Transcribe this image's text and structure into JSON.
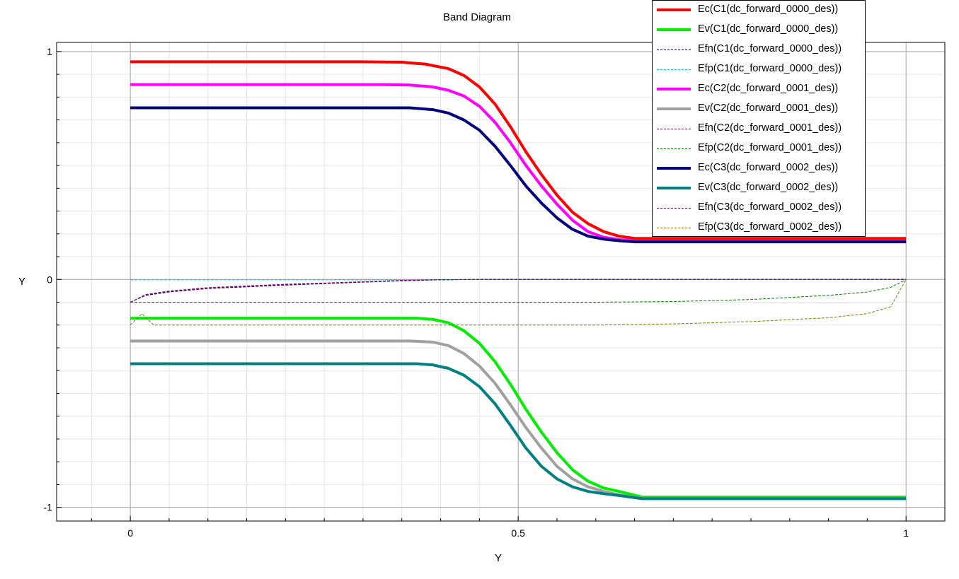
{
  "chart_data": {
    "type": "line",
    "title": "Band Diagram",
    "xlabel": "Y",
    "ylabel": "Y",
    "xlim": [
      -0.095,
      1.05
    ],
    "ylim": [
      -1.06,
      1.04
    ],
    "x_ticks": [
      {
        "v": 0,
        "label": "0"
      },
      {
        "v": 0.5,
        "label": "0.5"
      },
      {
        "v": 1,
        "label": "1"
      }
    ],
    "y_ticks": [
      {
        "v": 1,
        "label": "1"
      },
      {
        "v": 0,
        "label": "0"
      },
      {
        "v": -1,
        "label": "-1"
      }
    ],
    "grid": true,
    "legend_position": "top-right",
    "series": [
      {
        "name": "Ec(C1(dc_forward_0000_des))",
        "color": "#ff0000",
        "style": "thick",
        "points": [
          [
            0,
            0.955
          ],
          [
            0.3,
            0.955
          ],
          [
            0.35,
            0.953
          ],
          [
            0.38,
            0.945
          ],
          [
            0.41,
            0.925
          ],
          [
            0.43,
            0.895
          ],
          [
            0.45,
            0.845
          ],
          [
            0.47,
            0.77
          ],
          [
            0.49,
            0.67
          ],
          [
            0.51,
            0.56
          ],
          [
            0.53,
            0.46
          ],
          [
            0.55,
            0.37
          ],
          [
            0.57,
            0.295
          ],
          [
            0.59,
            0.245
          ],
          [
            0.61,
            0.21
          ],
          [
            0.63,
            0.19
          ],
          [
            0.65,
            0.18
          ],
          [
            1,
            0.18
          ]
        ]
      },
      {
        "name": "Ev(C1(dc_forward_0000_des))",
        "color": "#00ee00",
        "style": "thick",
        "points": [
          [
            0,
            -0.17
          ],
          [
            0.37,
            -0.17
          ],
          [
            0.39,
            -0.175
          ],
          [
            0.41,
            -0.19
          ],
          [
            0.43,
            -0.225
          ],
          [
            0.45,
            -0.28
          ],
          [
            0.47,
            -0.36
          ],
          [
            0.49,
            -0.46
          ],
          [
            0.51,
            -0.57
          ],
          [
            0.53,
            -0.67
          ],
          [
            0.55,
            -0.76
          ],
          [
            0.57,
            -0.835
          ],
          [
            0.59,
            -0.885
          ],
          [
            0.61,
            -0.915
          ],
          [
            0.63,
            -0.93
          ],
          [
            0.66,
            -0.955
          ],
          [
            1,
            -0.955
          ]
        ]
      },
      {
        "name": "Efn(C1(dc_forward_0000_des))",
        "color": "#000080",
        "style": "dashed",
        "points": [
          [
            0,
            -0.1
          ],
          [
            0.02,
            -0.07
          ],
          [
            0.05,
            -0.055
          ],
          [
            0.1,
            -0.04
          ],
          [
            0.2,
            -0.025
          ],
          [
            0.3,
            -0.012
          ],
          [
            0.35,
            -0.006
          ],
          [
            0.4,
            -0.002
          ],
          [
            0.45,
            0
          ],
          [
            1,
            0
          ]
        ]
      },
      {
        "name": "Efp(C1(dc_forward_0000_des))",
        "color": "#00ccee",
        "style": "dashed",
        "points": [
          [
            0,
            -0.002
          ],
          [
            0.4,
            -0.002
          ],
          [
            0.45,
            0
          ],
          [
            1,
            0
          ]
        ]
      },
      {
        "name": "Ec(C2(dc_forward_0001_des))",
        "color": "#ff00ff",
        "style": "thick",
        "points": [
          [
            0,
            0.855
          ],
          [
            0.32,
            0.855
          ],
          [
            0.36,
            0.853
          ],
          [
            0.39,
            0.845
          ],
          [
            0.41,
            0.83
          ],
          [
            0.43,
            0.805
          ],
          [
            0.45,
            0.76
          ],
          [
            0.47,
            0.69
          ],
          [
            0.49,
            0.6
          ],
          [
            0.51,
            0.5
          ],
          [
            0.53,
            0.41
          ],
          [
            0.55,
            0.33
          ],
          [
            0.57,
            0.26
          ],
          [
            0.59,
            0.21
          ],
          [
            0.61,
            0.185
          ],
          [
            0.63,
            0.175
          ],
          [
            0.65,
            0.168
          ],
          [
            1,
            0.168
          ]
        ]
      },
      {
        "name": "Ev(C2(dc_forward_0001_des))",
        "color": "#a0a0a0",
        "style": "thick",
        "points": [
          [
            0,
            -0.27
          ],
          [
            0.36,
            -0.27
          ],
          [
            0.39,
            -0.275
          ],
          [
            0.41,
            -0.29
          ],
          [
            0.43,
            -0.325
          ],
          [
            0.45,
            -0.38
          ],
          [
            0.47,
            -0.455
          ],
          [
            0.49,
            -0.55
          ],
          [
            0.51,
            -0.65
          ],
          [
            0.53,
            -0.74
          ],
          [
            0.55,
            -0.82
          ],
          [
            0.57,
            -0.875
          ],
          [
            0.59,
            -0.91
          ],
          [
            0.61,
            -0.93
          ],
          [
            0.63,
            -0.945
          ],
          [
            0.66,
            -0.96
          ],
          [
            1,
            -0.96
          ]
        ]
      },
      {
        "name": "Efn(C2(dc_forward_0001_des))",
        "color": "#800040",
        "style": "dashed",
        "points": [
          [
            0,
            -0.1
          ],
          [
            0.02,
            -0.068
          ],
          [
            0.05,
            -0.053
          ],
          [
            0.1,
            -0.038
          ],
          [
            0.2,
            -0.023
          ],
          [
            0.3,
            -0.011
          ],
          [
            0.35,
            -0.005
          ],
          [
            0.4,
            -0.001
          ],
          [
            0.45,
            0
          ],
          [
            1,
            0
          ]
        ]
      },
      {
        "name": "Efp(C2(dc_forward_0001_des))",
        "color": "#008000",
        "style": "dashed",
        "points": [
          [
            0,
            -0.1
          ],
          [
            0.6,
            -0.1
          ],
          [
            0.7,
            -0.097
          ],
          [
            0.8,
            -0.088
          ],
          [
            0.9,
            -0.07
          ],
          [
            0.95,
            -0.055
          ],
          [
            0.98,
            -0.035
          ],
          [
            1,
            0
          ]
        ]
      },
      {
        "name": "Ec(C3(dc_forward_0002_des))",
        "color": "#000080",
        "style": "thick",
        "points": [
          [
            0,
            0.753
          ],
          [
            0.36,
            0.753
          ],
          [
            0.39,
            0.745
          ],
          [
            0.41,
            0.73
          ],
          [
            0.43,
            0.7
          ],
          [
            0.45,
            0.655
          ],
          [
            0.47,
            0.585
          ],
          [
            0.49,
            0.5
          ],
          [
            0.51,
            0.41
          ],
          [
            0.53,
            0.335
          ],
          [
            0.55,
            0.27
          ],
          [
            0.57,
            0.22
          ],
          [
            0.59,
            0.19
          ],
          [
            0.61,
            0.177
          ],
          [
            0.63,
            0.17
          ],
          [
            0.65,
            0.165
          ],
          [
            1,
            0.165
          ]
        ]
      },
      {
        "name": "Ev(C3(dc_forward_0002_des))",
        "color": "#008080",
        "style": "thick",
        "points": [
          [
            0,
            -0.37
          ],
          [
            0.37,
            -0.37
          ],
          [
            0.39,
            -0.375
          ],
          [
            0.41,
            -0.39
          ],
          [
            0.43,
            -0.42
          ],
          [
            0.45,
            -0.47
          ],
          [
            0.47,
            -0.545
          ],
          [
            0.49,
            -0.64
          ],
          [
            0.51,
            -0.74
          ],
          [
            0.53,
            -0.82
          ],
          [
            0.55,
            -0.875
          ],
          [
            0.57,
            -0.91
          ],
          [
            0.59,
            -0.93
          ],
          [
            0.61,
            -0.94
          ],
          [
            0.63,
            -0.948
          ],
          [
            0.66,
            -0.962
          ],
          [
            1,
            -0.962
          ]
        ]
      },
      {
        "name": "Efn(C3(dc_forward_0002_des))",
        "color": "#800080",
        "style": "dashed",
        "points": [
          [
            0,
            -0.1
          ],
          [
            0.02,
            -0.066
          ],
          [
            0.05,
            -0.051
          ],
          [
            0.1,
            -0.036
          ],
          [
            0.2,
            -0.021
          ],
          [
            0.3,
            -0.01
          ],
          [
            0.35,
            -0.004
          ],
          [
            0.4,
            -0.001
          ],
          [
            0.45,
            0
          ],
          [
            1,
            0
          ]
        ]
      },
      {
        "name": "Efp(C3(dc_forward_0002_des))",
        "color": "#808000",
        "style": "dashed",
        "points": [
          [
            0,
            -0.2
          ],
          [
            0.015,
            -0.15
          ],
          [
            0.03,
            -0.2
          ],
          [
            0.6,
            -0.2
          ],
          [
            0.7,
            -0.195
          ],
          [
            0.8,
            -0.185
          ],
          [
            0.9,
            -0.168
          ],
          [
            0.95,
            -0.15
          ],
          [
            0.98,
            -0.12
          ],
          [
            1,
            0
          ]
        ]
      }
    ]
  }
}
